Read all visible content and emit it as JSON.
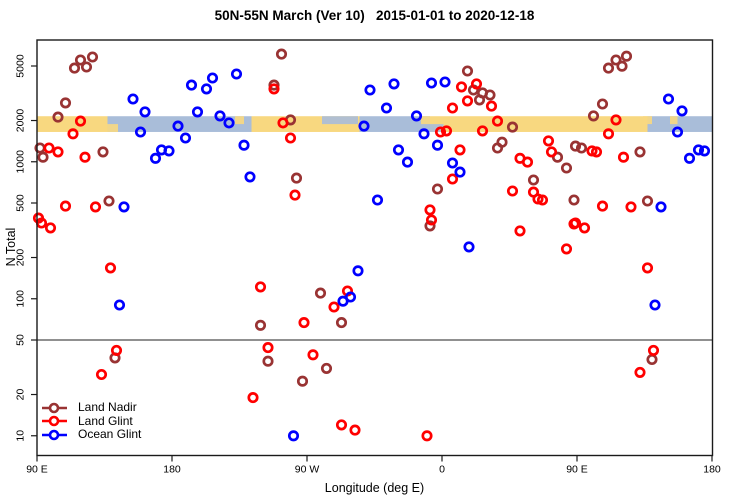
{
  "title": "50N-55N March (Ver 10)   2015-01-01 to 2020-12-18",
  "axes": {
    "x": {
      "label": "Longitude (deg E)",
      "ticks": [
        {
          "t": 90,
          "label": "90 E"
        },
        {
          "t": 180,
          "label": "180"
        },
        {
          "t": 270,
          "label": "90 W"
        },
        {
          "t": 360,
          "label": "0"
        },
        {
          "t": 450,
          "label": "90 E"
        },
        {
          "t": 540,
          "label": "180"
        }
      ]
    },
    "y": {
      "label": "N Total",
      "scale": "log10",
      "ticks": [
        {
          "v": 5000,
          "label": "5000"
        },
        {
          "v": 2000,
          "label": "2000"
        },
        {
          "v": 1000,
          "label": "1000"
        },
        {
          "v": 500,
          "label": "500"
        },
        {
          "v": 200,
          "label": "200"
        },
        {
          "v": 100,
          "label": "100"
        },
        {
          "v": 50,
          "label": "50"
        },
        {
          "v": 20,
          "label": "20"
        },
        {
          "v": 10,
          "label": "10"
        }
      ]
    }
  },
  "legend": {
    "items": [
      {
        "label": "Land Nadir",
        "color": "#993333"
      },
      {
        "label": "Land Glint",
        "color": "#FF0000"
      },
      {
        "label": "Ocean Glint",
        "color": "#0000FF"
      }
    ]
  },
  "colors": {
    "land_nadir": "#993333",
    "land_glint": "#FF0000",
    "ocean_glint": "#0000FF",
    "band_land": "#F8D880",
    "band_ocean": "#A9BDD9",
    "frame": "#1a1a1a"
  },
  "reference_line": {
    "n_value": 50
  },
  "chart_data": {
    "type": "scatter",
    "title": "50N-55N March (Ver 10)   2015-01-01 to 2020-12-18",
    "xlabel": "Longitude (deg E)",
    "ylabel": "N Total",
    "x_axis_deg_range": [
      90,
      540
    ],
    "ylim_log": [
      10,
      6500
    ],
    "grid": false,
    "legend_position": "bottom-left",
    "surface_band": {
      "note": "land/ocean strip drawn across the plot near N=2000",
      "n_top": 2150,
      "n_bottom": 1650,
      "segments": [
        [
          90,
          137,
          "land"
        ],
        [
          137,
          233,
          "ocean"
        ],
        [
          233,
          305,
          "land"
        ],
        [
          305,
          352,
          "ocean"
        ],
        [
          352,
          497,
          "land"
        ],
        [
          497,
          540,
          "ocean"
        ]
      ],
      "speckles": [
        {
          "t0": 137,
          "t1": 144,
          "edge": "bottom",
          "type": "land"
        },
        {
          "t0": 222,
          "t1": 228,
          "edge": "top",
          "type": "land"
        },
        {
          "t0": 280,
          "t1": 304,
          "edge": "top",
          "type": "ocean"
        },
        {
          "t0": 346,
          "t1": 352,
          "edge": "top",
          "type": "land"
        },
        {
          "t0": 352,
          "t1": 361,
          "edge": "bottom",
          "type": "ocean"
        },
        {
          "t0": 494,
          "t1": 500,
          "edge": "top",
          "type": "land"
        },
        {
          "t0": 512,
          "t1": 517,
          "edge": "top",
          "type": "land"
        }
      ]
    },
    "series": [
      {
        "name": "Land Nadir",
        "color_key": "land_nadir",
        "points": [
          [
            119,
            5530
          ],
          [
            127,
            5820
          ],
          [
            115,
            4830
          ],
          [
            123,
            4920
          ],
          [
            109,
            2690
          ],
          [
            104,
            2120
          ],
          [
            134,
            1180
          ],
          [
            94,
            1080
          ],
          [
            92,
            1260
          ],
          [
            138,
            517
          ],
          [
            253,
            6110
          ],
          [
            248,
            3630
          ],
          [
            259,
            2020
          ],
          [
            263,
            760
          ],
          [
            377,
            4600
          ],
          [
            381,
            3340
          ],
          [
            387,
            3180
          ],
          [
            392,
            3070
          ],
          [
            385,
            2830
          ],
          [
            407,
            1790
          ],
          [
            400,
            1390
          ],
          [
            397,
            1260
          ],
          [
            437,
            1080
          ],
          [
            443,
            900
          ],
          [
            421,
            736
          ],
          [
            357,
            633
          ],
          [
            352,
            340
          ],
          [
            448,
            526
          ],
          [
            476,
            5530
          ],
          [
            483,
            5900
          ],
          [
            471,
            4830
          ],
          [
            480,
            4980
          ],
          [
            467,
            2640
          ],
          [
            461,
            2160
          ],
          [
            449,
            1300
          ],
          [
            453,
            1260
          ],
          [
            492,
            1180
          ],
          [
            497,
            517
          ],
          [
            279,
            110
          ],
          [
            239,
            64
          ],
          [
            293,
            67
          ],
          [
            244,
            35
          ],
          [
            283,
            31
          ],
          [
            267,
            25
          ],
          [
            500,
            36
          ],
          [
            142,
            37
          ]
        ]
      },
      {
        "name": "Land Glint",
        "color_key": "land_glint",
        "points": [
          [
            119,
            1980
          ],
          [
            114,
            1600
          ],
          [
            98,
            1260
          ],
          [
            104,
            1180
          ],
          [
            122,
            1080
          ],
          [
            109,
            475
          ],
          [
            129,
            468
          ],
          [
            91,
            388
          ],
          [
            93,
            357
          ],
          [
            99,
            329
          ],
          [
            139,
            168
          ],
          [
            143,
            42
          ],
          [
            133,
            28
          ],
          [
            248,
            3400
          ],
          [
            254,
            1920
          ],
          [
            259,
            1490
          ],
          [
            262,
            571
          ],
          [
            239,
            122
          ],
          [
            288,
            87
          ],
          [
            297,
            114
          ],
          [
            268,
            67
          ],
          [
            244,
            44
          ],
          [
            274,
            39
          ],
          [
            234,
            19
          ],
          [
            293,
            12
          ],
          [
            302,
            11
          ],
          [
            373,
            3520
          ],
          [
            383,
            3700
          ],
          [
            377,
            2780
          ],
          [
            393,
            2550
          ],
          [
            367,
            2470
          ],
          [
            397,
            1980
          ],
          [
            387,
            1680
          ],
          [
            359,
            1650
          ],
          [
            363,
            1680
          ],
          [
            372,
            1220
          ],
          [
            412,
            1060
          ],
          [
            417,
            995
          ],
          [
            431,
            1420
          ],
          [
            433,
            1180
          ],
          [
            367,
            748
          ],
          [
            407,
            612
          ],
          [
            421,
            601
          ],
          [
            424,
            535
          ],
          [
            427,
            526
          ],
          [
            352,
            445
          ],
          [
            353,
            376
          ],
          [
            412,
            313
          ],
          [
            443,
            231
          ],
          [
            448,
            352
          ],
          [
            350,
            10
          ],
          [
            476,
            2020
          ],
          [
            471,
            1600
          ],
          [
            460,
            1200
          ],
          [
            463,
            1180
          ],
          [
            481,
            1080
          ],
          [
            467,
            475
          ],
          [
            486,
            468
          ],
          [
            449,
            357
          ],
          [
            455,
            329
          ],
          [
            497,
            168
          ],
          [
            501,
            42
          ],
          [
            492,
            29
          ]
        ]
      },
      {
        "name": "Ocean Glint",
        "color_key": "ocean_glint",
        "points": [
          [
            154,
            2870
          ],
          [
            162,
            2310
          ],
          [
            159,
            1650
          ],
          [
            184,
            1820
          ],
          [
            189,
            1490
          ],
          [
            197,
            2310
          ],
          [
            193,
            3630
          ],
          [
            207,
            4090
          ],
          [
            203,
            3400
          ],
          [
            169,
            1060
          ],
          [
            173,
            1220
          ],
          [
            178,
            1200
          ],
          [
            148,
            468
          ],
          [
            145,
            90
          ],
          [
            223,
            4370
          ],
          [
            312,
            3340
          ],
          [
            328,
            3700
          ],
          [
            323,
            2470
          ],
          [
            212,
            2160
          ],
          [
            218,
            1920
          ],
          [
            308,
            1820
          ],
          [
            228,
            1320
          ],
          [
            232,
            775
          ],
          [
            317,
            526
          ],
          [
            304,
            160
          ],
          [
            294,
            96
          ],
          [
            299,
            103
          ],
          [
            261,
            10
          ],
          [
            353,
            3760
          ],
          [
            362,
            3820
          ],
          [
            343,
            2160
          ],
          [
            348,
            1600
          ],
          [
            357,
            1320
          ],
          [
            331,
            1220
          ],
          [
            337,
            995
          ],
          [
            367,
            980
          ],
          [
            372,
            841
          ],
          [
            378,
            239
          ],
          [
            511,
            2870
          ],
          [
            520,
            2350
          ],
          [
            517,
            1650
          ],
          [
            525,
            1060
          ],
          [
            531,
            1220
          ],
          [
            535,
            1200
          ],
          [
            506,
            468
          ],
          [
            502,
            90
          ]
        ]
      }
    ]
  }
}
